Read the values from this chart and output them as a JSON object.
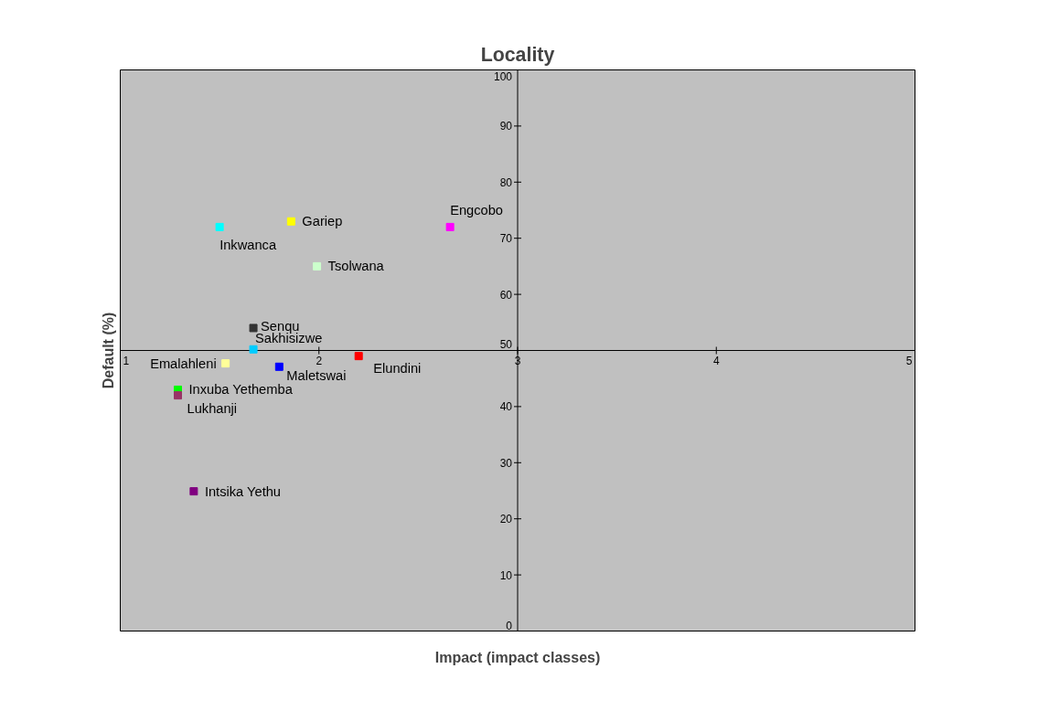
{
  "chart_data": {
    "type": "scatter",
    "title": "Locality",
    "xlabel": "Impact (impact classes)",
    "ylabel": "Default (%)",
    "xlim": [
      1,
      5
    ],
    "ylim": [
      0,
      100
    ],
    "xticks": [
      1,
      2,
      3,
      4,
      5
    ],
    "yticks": [
      0,
      10,
      20,
      30,
      40,
      50,
      60,
      70,
      80,
      90,
      100
    ],
    "grid": false,
    "legend": false,
    "marker": "square",
    "series": [
      {
        "name": "Inkwanca",
        "color": "#00ffff",
        "x": [
          1.5
        ],
        "values": [
          72
        ]
      },
      {
        "name": "Gariep",
        "color": "#ffff00",
        "x": [
          1.86
        ],
        "values": [
          73
        ]
      },
      {
        "name": "Engcobo",
        "color": "#ff00ff",
        "x": [
          2.66
        ],
        "values": [
          72
        ]
      },
      {
        "name": "Tsolwana",
        "color": "#ccffcc",
        "x": [
          1.99
        ],
        "values": [
          65
        ]
      },
      {
        "name": "Senqu",
        "color": "#333333",
        "x": [
          1.67
        ],
        "values": [
          54
        ]
      },
      {
        "name": "Sakhisizwe",
        "color": "#00ccff",
        "x": [
          1.67
        ],
        "values": [
          50.2
        ]
      },
      {
        "name": "Elundini",
        "color": "#ff0000",
        "x": [
          2.2
        ],
        "values": [
          49
        ]
      },
      {
        "name": "Maletswai",
        "color": "#0000ff",
        "x": [
          1.8
        ],
        "values": [
          47.1
        ]
      },
      {
        "name": "Emalahleni",
        "color": "#ffff99",
        "x": [
          1.53
        ],
        "values": [
          47.7
        ]
      },
      {
        "name": "Inxuba Yethemba",
        "color": "#00ff00",
        "x": [
          1.29
        ],
        "values": [
          43
        ]
      },
      {
        "name": "Lukhanji",
        "color": "#993366",
        "x": [
          1.29
        ],
        "values": [
          42
        ]
      },
      {
        "name": "Intsika Yethu",
        "color": "#800080",
        "x": [
          1.37
        ],
        "values": [
          24.9
        ]
      }
    ]
  }
}
